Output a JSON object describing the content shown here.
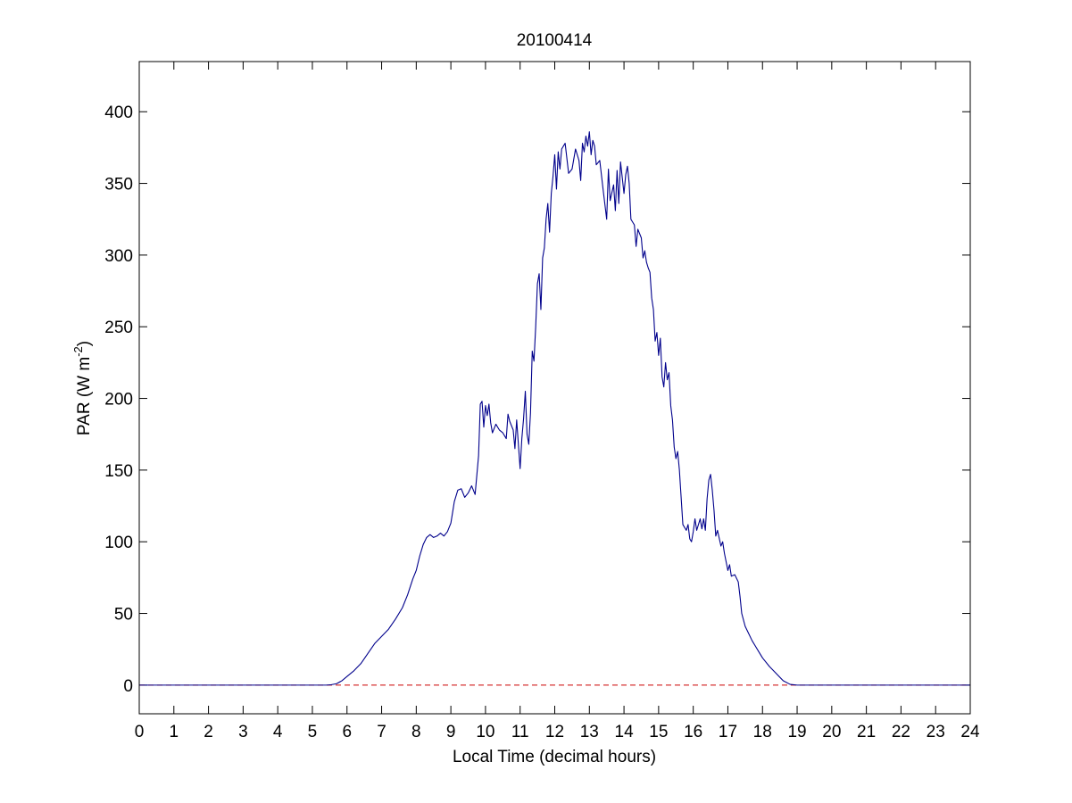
{
  "chart_data": {
    "type": "line",
    "title": "20100414",
    "xlabel": "Local Time (decimal hours)",
    "ylabel_main": "PAR (W m",
    "ylabel_sup": "-2",
    "ylabel_close": ")",
    "xlim": [
      0,
      24
    ],
    "ylim": [
      -20,
      435
    ],
    "xticks": [
      0,
      1,
      2,
      3,
      4,
      5,
      6,
      7,
      8,
      9,
      10,
      11,
      12,
      13,
      14,
      15,
      16,
      17,
      18,
      19,
      20,
      21,
      22,
      23,
      24
    ],
    "yticks": [
      0,
      50,
      100,
      150,
      200,
      250,
      300,
      350,
      400
    ],
    "grid": false,
    "colors": {
      "series": "#00008b",
      "reference": "#cc0000"
    },
    "reference_line": {
      "y": 0,
      "style": "dashed"
    },
    "series": [
      {
        "points": [
          [
            0,
            0
          ],
          [
            5.4,
            0
          ],
          [
            5.55,
            0.3
          ],
          [
            5.7,
            1
          ],
          [
            5.85,
            3
          ],
          [
            6.0,
            6
          ],
          [
            6.2,
            10
          ],
          [
            6.4,
            15
          ],
          [
            6.6,
            22
          ],
          [
            6.8,
            29
          ],
          [
            7.0,
            34
          ],
          [
            7.2,
            39
          ],
          [
            7.4,
            46
          ],
          [
            7.6,
            54
          ],
          [
            7.75,
            63
          ],
          [
            7.9,
            74
          ],
          [
            8.0,
            80
          ],
          [
            8.1,
            90
          ],
          [
            8.2,
            98
          ],
          [
            8.3,
            103
          ],
          [
            8.4,
            105
          ],
          [
            8.5,
            103
          ],
          [
            8.6,
            104
          ],
          [
            8.7,
            106
          ],
          [
            8.8,
            104
          ],
          [
            8.9,
            107
          ],
          [
            9.0,
            113
          ],
          [
            9.1,
            128
          ],
          [
            9.2,
            136
          ],
          [
            9.3,
            137
          ],
          [
            9.4,
            131
          ],
          [
            9.5,
            134
          ],
          [
            9.6,
            139
          ],
          [
            9.7,
            133
          ],
          [
            9.8,
            160
          ],
          [
            9.85,
            196
          ],
          [
            9.9,
            198
          ],
          [
            9.95,
            180
          ],
          [
            10.0,
            195
          ],
          [
            10.05,
            188
          ],
          [
            10.1,
            196
          ],
          [
            10.15,
            183
          ],
          [
            10.2,
            176
          ],
          [
            10.3,
            182
          ],
          [
            10.4,
            178
          ],
          [
            10.5,
            176
          ],
          [
            10.6,
            172
          ],
          [
            10.65,
            189
          ],
          [
            10.7,
            184
          ],
          [
            10.8,
            178
          ],
          [
            10.85,
            165
          ],
          [
            10.9,
            185
          ],
          [
            11.0,
            151
          ],
          [
            11.05,
            172
          ],
          [
            11.1,
            186
          ],
          [
            11.15,
            205
          ],
          [
            11.2,
            175
          ],
          [
            11.25,
            168
          ],
          [
            11.3,
            190
          ],
          [
            11.35,
            233
          ],
          [
            11.4,
            226
          ],
          [
            11.45,
            250
          ],
          [
            11.5,
            280
          ],
          [
            11.55,
            287
          ],
          [
            11.6,
            262
          ],
          [
            11.65,
            298
          ],
          [
            11.7,
            305
          ],
          [
            11.75,
            325
          ],
          [
            11.8,
            336
          ],
          [
            11.85,
            316
          ],
          [
            11.9,
            343
          ],
          [
            11.95,
            355
          ],
          [
            12.0,
            370
          ],
          [
            12.05,
            346
          ],
          [
            12.1,
            372
          ],
          [
            12.15,
            360
          ],
          [
            12.2,
            374
          ],
          [
            12.3,
            378
          ],
          [
            12.4,
            357
          ],
          [
            12.5,
            360
          ],
          [
            12.6,
            374
          ],
          [
            12.7,
            366
          ],
          [
            12.75,
            352
          ],
          [
            12.8,
            378
          ],
          [
            12.85,
            372
          ],
          [
            12.9,
            383
          ],
          [
            12.95,
            376
          ],
          [
            13.0,
            386
          ],
          [
            13.05,
            370
          ],
          [
            13.1,
            380
          ],
          [
            13.15,
            376
          ],
          [
            13.2,
            363
          ],
          [
            13.3,
            366
          ],
          [
            13.4,
            345
          ],
          [
            13.5,
            325
          ],
          [
            13.55,
            360
          ],
          [
            13.6,
            338
          ],
          [
            13.7,
            349
          ],
          [
            13.75,
            331
          ],
          [
            13.8,
            359
          ],
          [
            13.85,
            336
          ],
          [
            13.9,
            365
          ],
          [
            14.0,
            343
          ],
          [
            14.05,
            356
          ],
          [
            14.1,
            362
          ],
          [
            14.15,
            350
          ],
          [
            14.2,
            325
          ],
          [
            14.3,
            321
          ],
          [
            14.35,
            306
          ],
          [
            14.4,
            318
          ],
          [
            14.5,
            312
          ],
          [
            14.55,
            298
          ],
          [
            14.6,
            303
          ],
          [
            14.65,
            295
          ],
          [
            14.7,
            291
          ],
          [
            14.75,
            288
          ],
          [
            14.8,
            270
          ],
          [
            14.85,
            262
          ],
          [
            14.9,
            240
          ],
          [
            14.95,
            246
          ],
          [
            15.0,
            230
          ],
          [
            15.05,
            242
          ],
          [
            15.1,
            215
          ],
          [
            15.15,
            208
          ],
          [
            15.2,
            225
          ],
          [
            15.25,
            213
          ],
          [
            15.3,
            218
          ],
          [
            15.35,
            195
          ],
          [
            15.4,
            185
          ],
          [
            15.45,
            166
          ],
          [
            15.5,
            158
          ],
          [
            15.55,
            163
          ],
          [
            15.6,
            150
          ],
          [
            15.65,
            131
          ],
          [
            15.7,
            112
          ],
          [
            15.8,
            108
          ],
          [
            15.85,
            112
          ],
          [
            15.9,
            102
          ],
          [
            15.95,
            100
          ],
          [
            16.0,
            107
          ],
          [
            16.05,
            116
          ],
          [
            16.1,
            108
          ],
          [
            16.2,
            116
          ],
          [
            16.25,
            109
          ],
          [
            16.3,
            116
          ],
          [
            16.35,
            108
          ],
          [
            16.4,
            130
          ],
          [
            16.45,
            143
          ],
          [
            16.5,
            147
          ],
          [
            16.55,
            136
          ],
          [
            16.6,
            122
          ],
          [
            16.65,
            104
          ],
          [
            16.7,
            108
          ],
          [
            16.8,
            97
          ],
          [
            16.85,
            100
          ],
          [
            16.9,
            92
          ],
          [
            17.0,
            80
          ],
          [
            17.05,
            84
          ],
          [
            17.1,
            76
          ],
          [
            17.2,
            77
          ],
          [
            17.3,
            72
          ],
          [
            17.35,
            62
          ],
          [
            17.4,
            50
          ],
          [
            17.5,
            41
          ],
          [
            17.6,
            36
          ],
          [
            17.7,
            31
          ],
          [
            17.8,
            27
          ],
          [
            17.9,
            23
          ],
          [
            18.0,
            19
          ],
          [
            18.2,
            13
          ],
          [
            18.4,
            8
          ],
          [
            18.6,
            3
          ],
          [
            18.8,
            0.5
          ],
          [
            19.0,
            0
          ],
          [
            24,
            0
          ]
        ]
      }
    ]
  }
}
